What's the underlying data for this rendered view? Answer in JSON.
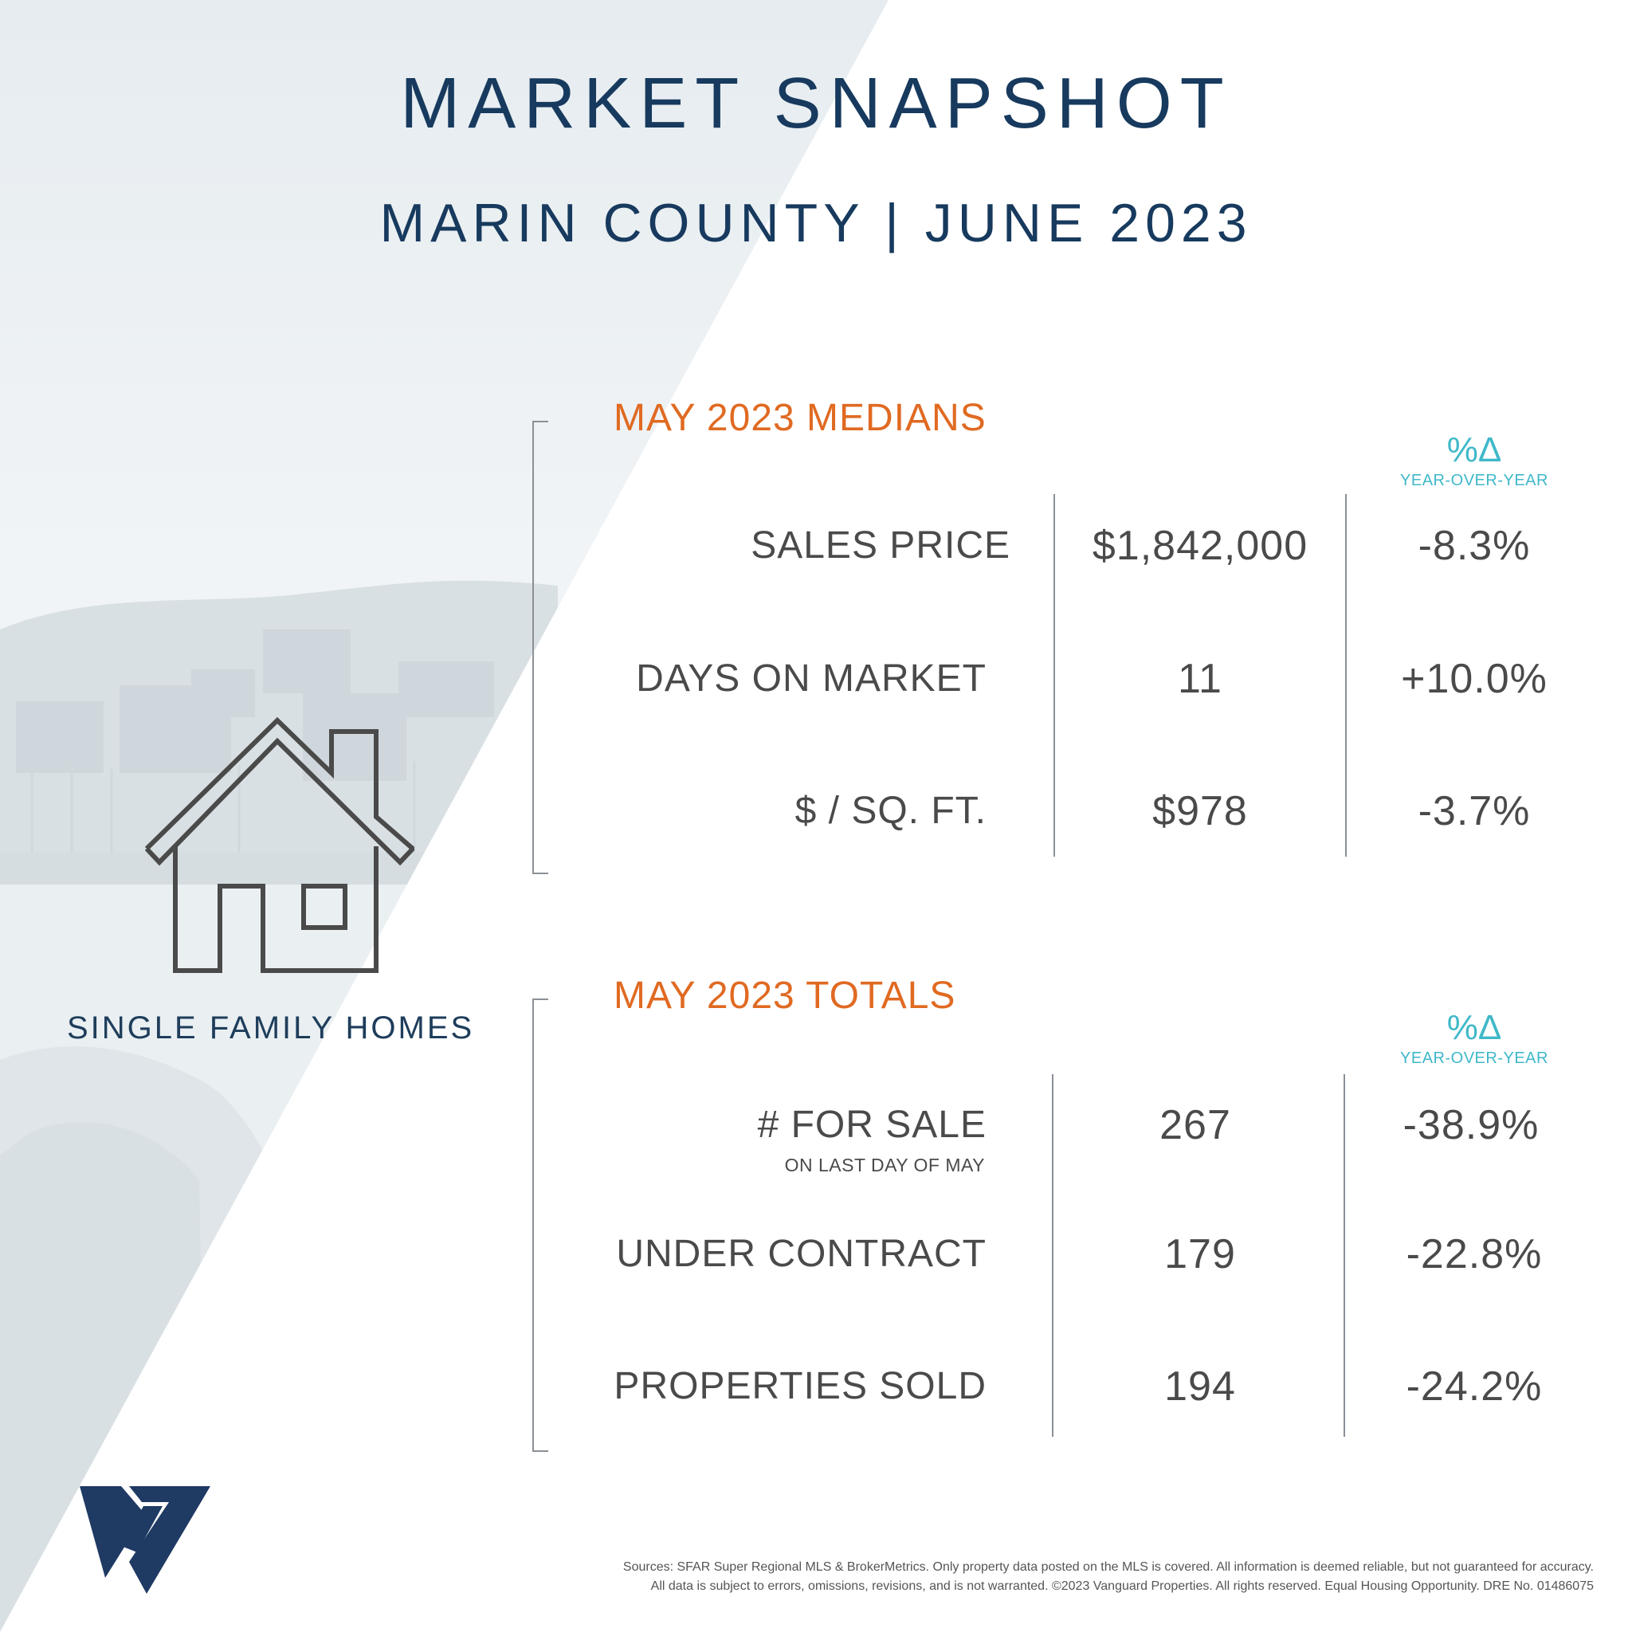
{
  "header": {
    "title": "MARKET SNAPSHOT",
    "subtitle": "MARIN COUNTY  |  JUNE 2023"
  },
  "colors": {
    "navy": "#173a5e",
    "orange": "#e06a22",
    "teal": "#3fb8c9",
    "text_gray": "#4a4a4a"
  },
  "sidebar": {
    "icon": "house-icon",
    "caption": "SINGLE FAMILY HOMES",
    "logo": "vanguard-logo"
  },
  "medians": {
    "heading": "MAY 2023 MEDIANS",
    "pct_symbol": "%Δ",
    "pct_label": "YEAR-OVER-YEAR",
    "rows": [
      {
        "label": "SALES PRICE",
        "value": "$1,842,000",
        "change": "-8.3%"
      },
      {
        "label": "DAYS ON MARKET",
        "value": "11",
        "change": "+10.0%"
      },
      {
        "label": "$ / SQ. FT.",
        "value": "$978",
        "change": "-3.7%"
      }
    ]
  },
  "totals": {
    "heading": "MAY 2023 TOTALS",
    "pct_symbol": "%Δ",
    "pct_label": "YEAR-OVER-YEAR",
    "rows": [
      {
        "label": "# FOR SALE",
        "note": "ON LAST DAY OF MAY",
        "value": "267",
        "change": "-38.9%"
      },
      {
        "label": "UNDER CONTRACT",
        "value": "179",
        "change": "-22.8%"
      },
      {
        "label": "PROPERTIES SOLD",
        "value": "194",
        "change": "-24.2%"
      }
    ]
  },
  "footer": {
    "line1": "Sources: SFAR Super Regional MLS & BrokerMetrics. Only property data posted on the MLS is covered. All information is deemed reliable, but not guaranteed for accuracy.",
    "line2": "All data is subject to errors, omissions, revisions, and is not warranted. ©2023 Vanguard Properties. All rights reserved. Equal Housing Opportunity. DRE No. 01486075"
  }
}
